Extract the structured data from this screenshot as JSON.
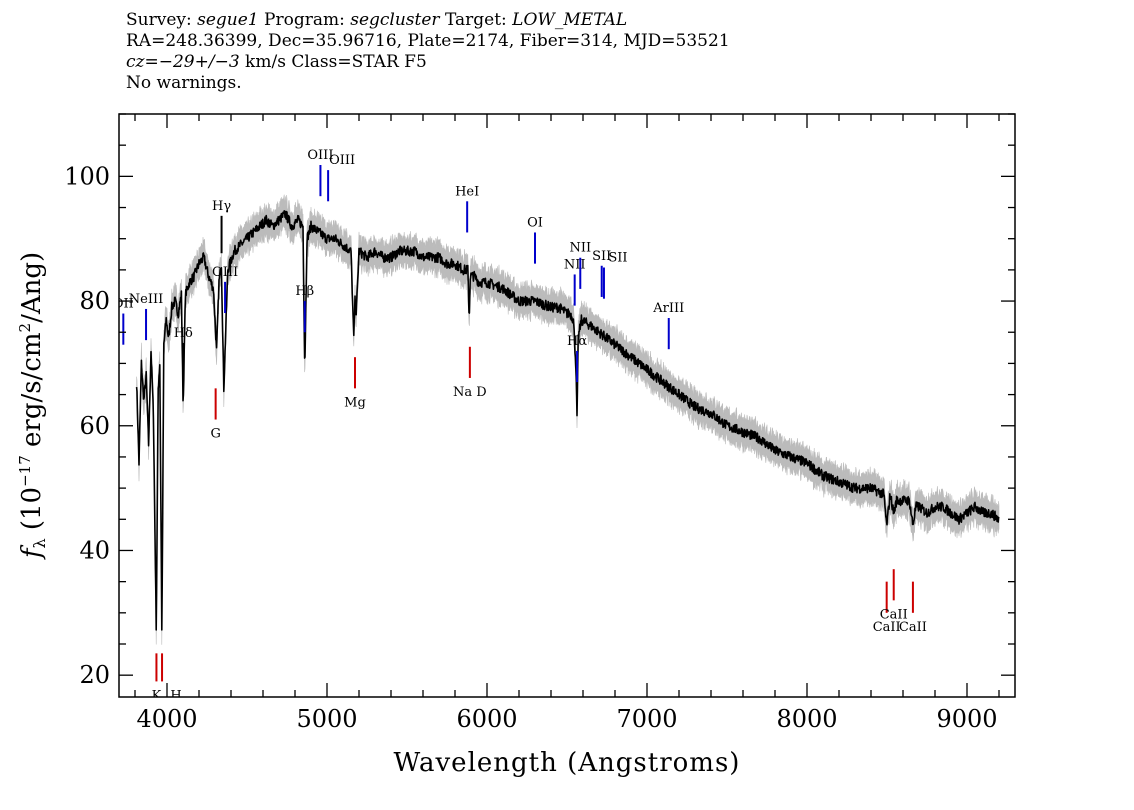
{
  "header": {
    "survey_label": "Survey:",
    "survey": "segue1",
    "program_label": "Program:",
    "program": "segcluster",
    "target_label": "Target:",
    "target": "LOW_METAL",
    "line2": "RA=248.36399, Dec=35.96716, Plate=2174, Fiber=314, MJD=53521",
    "cz_label": "cz=",
    "cz_value": "−29+/−3",
    "cz_rest": " km/s Class=STAR F5",
    "warnings": "No warnings."
  },
  "chart_data": {
    "type": "line",
    "xlabel": "Wavelength (Angstroms)",
    "ylabel": "fλ (10⁻¹⁷ erg/s/cm²/Ang)",
    "ylabel_parts": {
      "f": "f",
      "sub": "λ",
      "pre": " (10",
      "exp1": "−17",
      "mid": " erg/s/cm",
      "exp2": "2",
      "post": "/Ang)"
    },
    "xlim": [
      3700,
      9300
    ],
    "ylim": [
      16.5,
      110
    ],
    "x_ticks": [
      4000,
      5000,
      6000,
      7000,
      8000,
      9000
    ],
    "x_tick_labels": [
      "4000",
      "5000",
      "6000",
      "7000",
      "8000",
      "9000"
    ],
    "y_ticks": [
      20,
      40,
      60,
      80,
      100
    ],
    "y_tick_labels": [
      "20",
      "40",
      "60",
      "80",
      "100"
    ],
    "grid": false,
    "colors": {
      "flux": "#000000",
      "error": "#bbbbbb",
      "emission": "#0000cc",
      "absorption": "#cc0000",
      "neutral": "#000000"
    },
    "series": [
      {
        "name": "flux",
        "x": [
          3810,
          3825,
          3840,
          3855,
          3870,
          3885,
          3900,
          3915,
          3933,
          3945,
          3955,
          3968,
          3980,
          3995,
          4010,
          4030,
          4050,
          4070,
          4090,
          4101,
          4115,
          4140,
          4170,
          4200,
          4230,
          4260,
          4290,
          4310,
          4325,
          4340,
          4355,
          4380,
          4420,
          4460,
          4500,
          4540,
          4580,
          4620,
          4660,
          4700,
          4740,
          4780,
          4820,
          4850,
          4861,
          4875,
          4900,
          4950,
          5000,
          5050,
          5100,
          5150,
          5167,
          5175,
          5183,
          5200,
          5250,
          5300,
          5350,
          5400,
          5450,
          5500,
          5550,
          5600,
          5650,
          5700,
          5750,
          5800,
          5850,
          5880,
          5889,
          5895,
          5920,
          5950,
          6000,
          6100,
          6200,
          6300,
          6400,
          6450,
          6500,
          6520,
          6540,
          6555,
          6563,
          6570,
          6590,
          6650,
          6700,
          6800,
          6900,
          7000,
          7100,
          7200,
          7300,
          7400,
          7500,
          7600,
          7700,
          7800,
          7900,
          8000,
          8100,
          8200,
          8300,
          8400,
          8480,
          8498,
          8520,
          8542,
          8560,
          8600,
          8640,
          8662,
          8680,
          8700,
          8750,
          8800,
          8850,
          8900,
          8950,
          9000,
          9050,
          9100,
          9150,
          9200
        ],
        "values": [
          67,
          54,
          70,
          64,
          68,
          57,
          72,
          62,
          27,
          66,
          70,
          26,
          73,
          77,
          74,
          79,
          80,
          78,
          81,
          63,
          81,
          83,
          84,
          86,
          87,
          84,
          82,
          72,
          83,
          86,
          66,
          85,
          88,
          89,
          90,
          91,
          92,
          93,
          92,
          93,
          94,
          92,
          93,
          92,
          69,
          90,
          92,
          91,
          90,
          90,
          89,
          88,
          74,
          80,
          78,
          88,
          87,
          88,
          87,
          87,
          88,
          88,
          88,
          87,
          87,
          87,
          86,
          86,
          85,
          85,
          77,
          84,
          84,
          83,
          83,
          82,
          80,
          80,
          79,
          79,
          78,
          78,
          77,
          70,
          61,
          74,
          77,
          76,
          75,
          73,
          71,
          69,
          67,
          65,
          63,
          62,
          60,
          59,
          58,
          56,
          55,
          54,
          52,
          51,
          50,
          50,
          49,
          44,
          49,
          46,
          48,
          48,
          48,
          44,
          47,
          47,
          46,
          47,
          47,
          46,
          45,
          46,
          47,
          46,
          46,
          45
        ]
      }
    ],
    "line_labels": [
      {
        "label": "OII",
        "x": 3727,
        "kind": "emission"
      },
      {
        "label": "NeIII",
        "x": 3869,
        "kind": "emission"
      },
      {
        "label": "K",
        "x": 3934,
        "kind": "absorption"
      },
      {
        "label": "H",
        "x": 3969,
        "kind": "absorption"
      },
      {
        "label": "Hδ",
        "x": 4102,
        "kind": "neutral"
      },
      {
        "label": "G",
        "x": 4304,
        "kind": "absorption"
      },
      {
        "label": "Hγ",
        "x": 4341,
        "kind": "neutral"
      },
      {
        "label": "OIII",
        "x": 4363,
        "kind": "emission"
      },
      {
        "label": "Hβ",
        "x": 4861,
        "kind": "emission"
      },
      {
        "label": "OIII",
        "x": 4959,
        "kind": "emission"
      },
      {
        "label": "OIII",
        "x": 5007,
        "kind": "emission"
      },
      {
        "label": "Mg",
        "x": 5175,
        "kind": "absorption"
      },
      {
        "label": "HeI",
        "x": 5876,
        "kind": "emission"
      },
      {
        "label": "Na D",
        "x": 5893,
        "kind": "absorption"
      },
      {
        "label": "OI",
        "x": 6300,
        "kind": "emission"
      },
      {
        "label": "NII",
        "x": 6548,
        "kind": "emission"
      },
      {
        "label": "Hα",
        "x": 6563,
        "kind": "emission"
      },
      {
        "label": "NII",
        "x": 6583,
        "kind": "emission"
      },
      {
        "label": "SII",
        "x": 6717,
        "kind": "emission"
      },
      {
        "label": "SII",
        "x": 6731,
        "kind": "emission"
      },
      {
        "label": "ArIII",
        "x": 7136,
        "kind": "emission"
      },
      {
        "label": "CaII",
        "x": 8498,
        "kind": "absorption"
      },
      {
        "label": "CaII",
        "x": 8542,
        "kind": "absorption"
      },
      {
        "label": "CaII",
        "x": 8662,
        "kind": "absorption"
      }
    ]
  }
}
